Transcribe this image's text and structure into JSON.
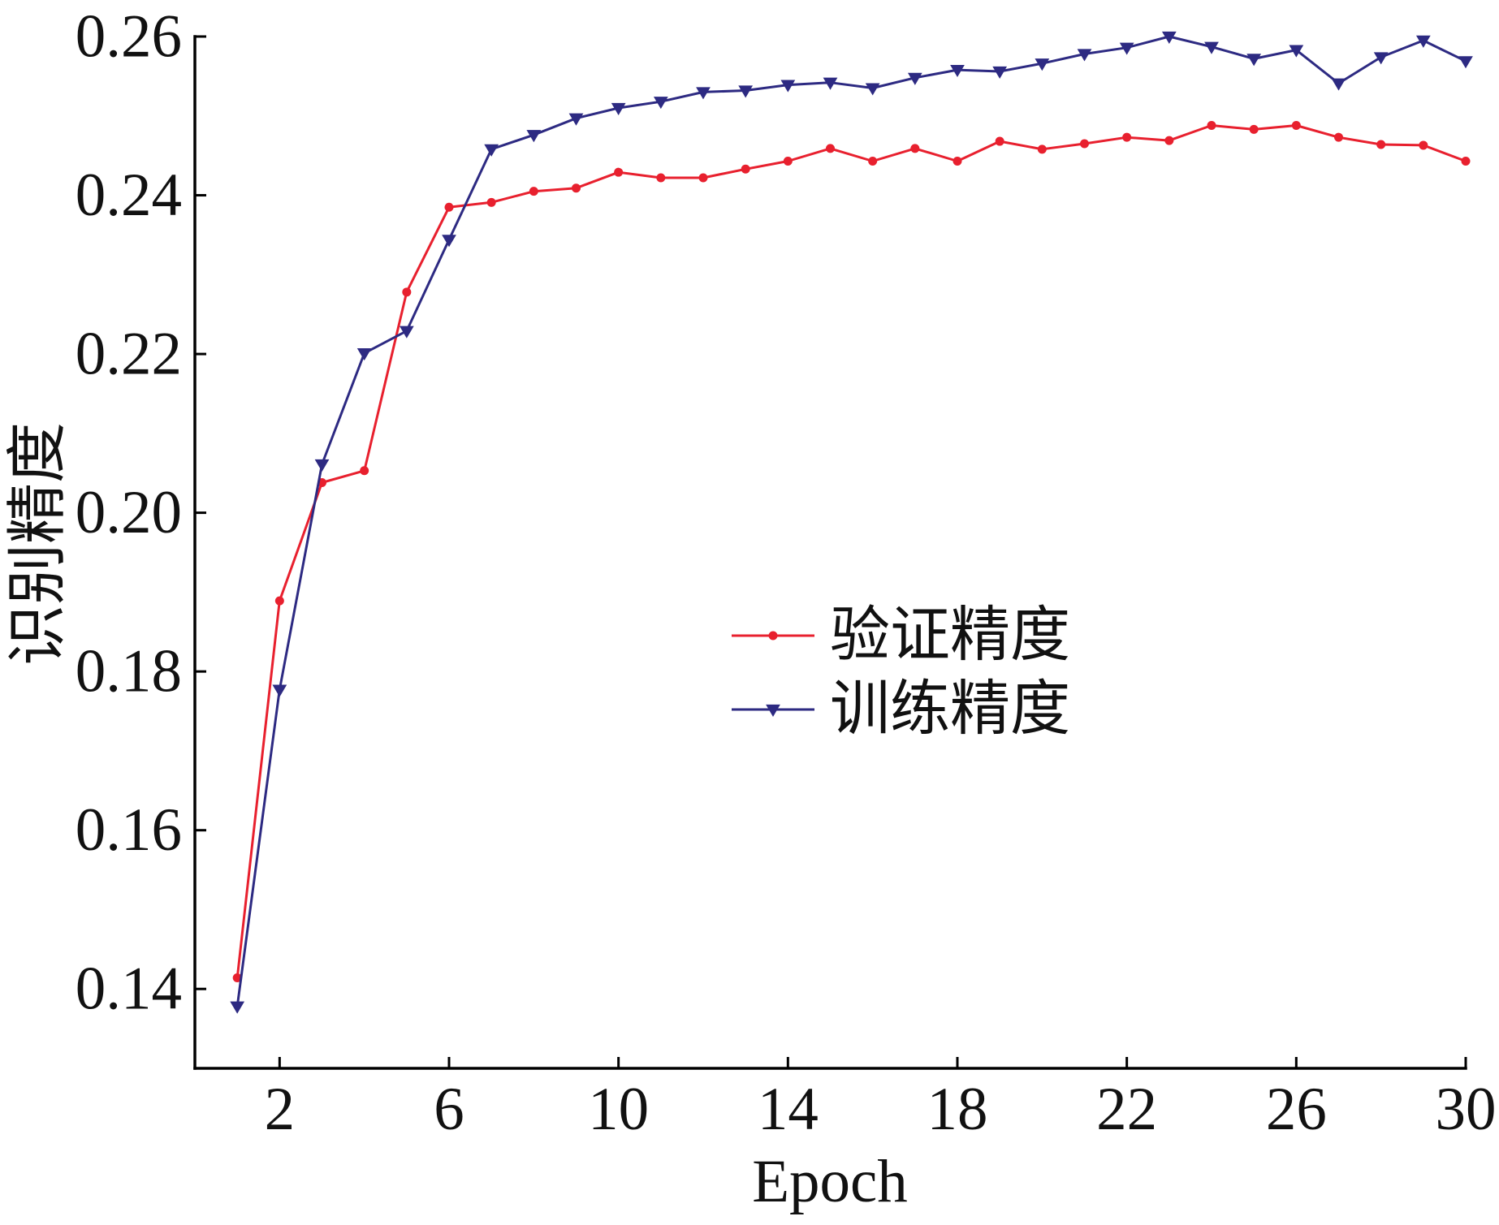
{
  "chart_data": {
    "type": "line",
    "xlabel": "Epoch",
    "ylabel": "识别精度",
    "x": [
      1,
      2,
      3,
      4,
      5,
      6,
      7,
      8,
      9,
      10,
      11,
      12,
      13,
      14,
      15,
      16,
      17,
      18,
      19,
      20,
      21,
      22,
      23,
      24,
      25,
      26,
      27,
      28,
      29,
      30
    ],
    "series": [
      {
        "name": "验证精度",
        "color": "#e8202e",
        "marker": "dot",
        "values": [
          0.1414,
          0.1889,
          0.2038,
          0.2053,
          0.2278,
          0.2385,
          0.2391,
          0.2405,
          0.2409,
          0.2429,
          0.2422,
          0.2422,
          0.2433,
          0.2443,
          0.2459,
          0.2443,
          0.2459,
          0.2443,
          0.2468,
          0.2458,
          0.2465,
          0.2473,
          0.2469,
          0.2488,
          0.2483,
          0.2488,
          0.2473,
          0.2464,
          0.2463,
          0.2443
        ]
      },
      {
        "name": "训练精度",
        "color": "#2d2a82",
        "marker": "triangle-down",
        "values": [
          0.1378,
          0.1777,
          0.2061,
          0.2201,
          0.2229,
          0.2344,
          0.2458,
          0.2476,
          0.2497,
          0.251,
          0.2518,
          0.253,
          0.2532,
          0.2539,
          0.2542,
          0.2535,
          0.2548,
          0.2558,
          0.2556,
          0.2566,
          0.2578,
          0.2586,
          0.26,
          0.2587,
          0.2572,
          0.2583,
          0.2541,
          0.2574,
          0.2595,
          0.2569
        ]
      }
    ],
    "xlim": [
      0,
      30
    ],
    "ylim": [
      0.13,
      0.26
    ],
    "xticks": [
      2,
      6,
      10,
      14,
      18,
      22,
      26,
      30
    ],
    "xtick_labels": [
      "2",
      "6",
      "10",
      "14",
      "18",
      "22",
      "26",
      "30"
    ],
    "yticks": [
      0.14,
      0.16,
      0.18,
      0.2,
      0.22,
      0.24,
      0.26
    ],
    "ytick_labels": [
      "0.14",
      "0.16",
      "0.18",
      "0.20",
      "0.22",
      "0.24",
      "0.26"
    ],
    "grid": false,
    "legend": "center"
  }
}
